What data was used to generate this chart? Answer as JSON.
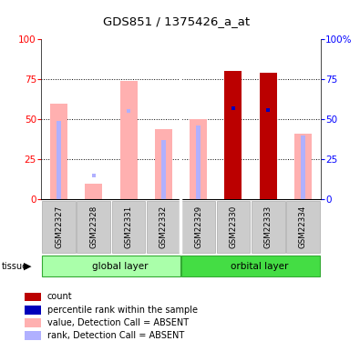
{
  "title": "GDS851 / 1375426_a_at",
  "samples": [
    "GSM22327",
    "GSM22328",
    "GSM22331",
    "GSM22332",
    "GSM22329",
    "GSM22330",
    "GSM22333",
    "GSM22334"
  ],
  "value_absent": [
    60,
    10,
    74,
    44,
    50,
    0,
    0,
    41
  ],
  "rank_absent_bar": [
    49,
    0,
    0,
    37,
    46,
    0,
    0,
    40
  ],
  "rank_absent_dot": [
    null,
    15,
    55,
    null,
    null,
    57,
    56,
    null
  ],
  "count": [
    0,
    0,
    0,
    0,
    0,
    80,
    79,
    0
  ],
  "percentile_rank": [
    null,
    null,
    null,
    null,
    null,
    57,
    56,
    null
  ],
  "ylim": [
    0,
    100
  ],
  "yticks": [
    0,
    25,
    50,
    75,
    100
  ],
  "bar_width": 0.5,
  "rank_bar_width": 0.12,
  "absent_value_color": "#ffb0b0",
  "absent_rank_color": "#b0b0ff",
  "count_color": "#bb0000",
  "percentile_color": "#0000bb",
  "global_layer_color": "#aaffaa",
  "orbital_layer_color": "#44dd44",
  "group_border_color": "#33aa33",
  "xlabel_box_color": "#cccccc",
  "xlabel_box_edge": "#aaaaaa",
  "bg_color": "#ffffff",
  "divider_after": 3,
  "n_samples": 8,
  "n_global": 4,
  "n_orbital": 4
}
